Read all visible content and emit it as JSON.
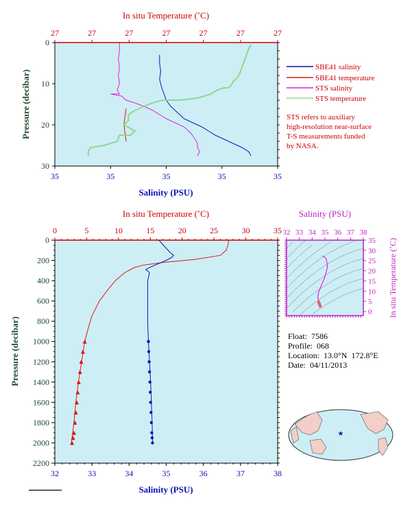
{
  "colors": {
    "panel_bg": "#cdeef5",
    "sbe_salinity": "#0a14b4",
    "sbe_temperature": "#e11414",
    "sts_salinity": "#e020e0",
    "sts_temperature": "#8fd88f",
    "temp_axis": "#cc0000",
    "sal_axis": "#0a14b4",
    "pressure_axis": "#1e4a2a",
    "ts_axis": "#c020c0"
  },
  "legend": {
    "items": [
      {
        "label": "SBE41 salinity",
        "color": "#0a14b4"
      },
      {
        "label": "SBE41 temperature",
        "color": "#e11414"
      },
      {
        "label": "STS salinity",
        "color": "#e020e0"
      },
      {
        "label": "STS temperature",
        "color": "#8fd88f"
      }
    ],
    "note_lines": [
      "STS refers to auxiliary",
      "high-resolution near-surface",
      "T-S measurements funded",
      "by NASA."
    ]
  },
  "float_info": {
    "float_label": "Float:",
    "float_value": "7586",
    "profile_label": "Profile:",
    "profile_value": "068",
    "location_label": "Location:",
    "location_value": "13.0°N  172.8°E",
    "date_label": "Date:",
    "date_value": "04/11/2013"
  },
  "chart_data": [
    {
      "id": "near-surface",
      "type": "line",
      "top_axis_title": "In situ Temperature (˚C)",
      "top_ticks": [
        "27",
        "27",
        "27",
        "27",
        "27",
        "27",
        "27"
      ],
      "bottom_axis_title": "Salinity (PSU)",
      "bottom_ticks": [
        "35",
        "35",
        "35",
        "35",
        "35"
      ],
      "left_axis_title": "Pressure (decibar)",
      "left_ticks": [
        0,
        10,
        20,
        30
      ],
      "ylim": [
        0,
        30
      ],
      "series": [
        {
          "name": "SBE41 salinity",
          "color": "#0a14b4",
          "x_frac": [
            0.47,
            0.47,
            0.475,
            0.47,
            0.48,
            0.49,
            0.5,
            0.52,
            0.55,
            0.58,
            0.62,
            0.66,
            0.69,
            0.72,
            0.76,
            0.8,
            0.84,
            0.87,
            0.88
          ],
          "y": [
            3,
            5,
            7,
            9,
            11,
            12.5,
            14,
            15.5,
            17,
            18.5,
            19.5,
            20.5,
            21.5,
            22.5,
            23.5,
            24.5,
            25.5,
            26.5,
            27.5
          ]
        },
        {
          "name": "SBE41 temperature",
          "color": "#e11414",
          "x_frac": [
            0.32,
            0.31,
            0.32
          ],
          "y": [
            16,
            20,
            24
          ]
        },
        {
          "name": "STS salinity",
          "color": "#e020e0",
          "x_frac": [
            0.29,
            0.29,
            0.285,
            0.29,
            0.285,
            0.29,
            0.28,
            0.29,
            0.25,
            0.3,
            0.32,
            0.35,
            0.4,
            0.44,
            0.47,
            0.5,
            0.54,
            0.58,
            0.61,
            0.63,
            0.64,
            0.64,
            0.65,
            0.64
          ],
          "y": [
            0,
            2,
            4,
            6,
            8,
            10,
            11.5,
            12.5,
            12.5,
            13,
            14,
            14.5,
            15.5,
            16.5,
            17.5,
            18.5,
            19.5,
            20.5,
            22,
            23.5,
            24.5,
            25.5,
            26.5,
            27.5
          ]
        },
        {
          "name": "STS temperature",
          "color": "#8fd88f",
          "x_frac": [
            0.88,
            0.87,
            0.86,
            0.85,
            0.84,
            0.83,
            0.82,
            0.8,
            0.79,
            0.78,
            0.76,
            0.73,
            0.7,
            0.67,
            0.64,
            0.56,
            0.48,
            0.42,
            0.36,
            0.33,
            0.33,
            0.31,
            0.36,
            0.34,
            0.29,
            0.28,
            0.22,
            0.16,
            0.15,
            0.15
          ],
          "y": [
            0.5,
            1.5,
            3,
            4.5,
            6,
            7.5,
            8.5,
            9.5,
            10.5,
            11,
            11,
            11.5,
            12.5,
            13,
            13.5,
            14,
            14,
            15,
            16.5,
            17.5,
            19,
            20,
            21.5,
            22.5,
            22.5,
            24,
            25,
            25.5,
            26.5,
            27.5
          ]
        }
      ]
    },
    {
      "id": "full-profile",
      "type": "line",
      "top_axis_title": "In situ Temperature (˚C)",
      "top_ticks": [
        0,
        5,
        10,
        15,
        20,
        25,
        30,
        35
      ],
      "xlim_temp": [
        0,
        35
      ],
      "bottom_axis_title": "Salinity (PSU)",
      "bottom_ticks": [
        32,
        33,
        34,
        35,
        36,
        37,
        38
      ],
      "xlim_sal": [
        32,
        38
      ],
      "left_axis_title": "Pressure (decibar)",
      "left_ticks": [
        0,
        200,
        400,
        600,
        800,
        1000,
        1200,
        1400,
        1600,
        1800,
        2000,
        2200
      ],
      "ylim": [
        0,
        2200
      ],
      "series": [
        {
          "name": "SBE41 salinity",
          "color": "#0a14b4",
          "x": [
            34.8,
            34.9,
            35.0,
            35.1,
            35.2,
            35.15,
            35.0,
            34.8,
            34.55,
            34.45,
            34.55,
            34.5,
            34.5,
            34.5,
            34.52,
            34.55,
            34.58,
            34.6,
            34.62,
            34.63
          ],
          "y": [
            0,
            40,
            80,
            120,
            150,
            170,
            200,
            230,
            270,
            290,
            320,
            400,
            600,
            800,
            1000,
            1200,
            1400,
            1600,
            1800,
            2000
          ]
        },
        {
          "name": "SBE41 temperature",
          "color": "#e11414",
          "x": [
            27.3,
            27.2,
            26.9,
            26,
            22,
            17,
            14,
            12.5,
            11,
            9.5,
            8.2,
            7,
            5.8,
            5.1,
            4.7,
            4.2,
            3.7,
            3.3,
            3.0,
            2.6
          ],
          "y": [
            0,
            50,
            100,
            150,
            190,
            220,
            245,
            270,
            320,
            400,
            500,
            600,
            750,
            900,
            1000,
            1200,
            1400,
            1600,
            1800,
            2000
          ]
        },
        {
          "name": "SBE41 salinity samples",
          "color": "#0a14b4",
          "x": [
            34.52,
            34.53,
            34.54,
            34.55,
            34.56,
            34.57,
            34.58,
            34.59,
            34.6,
            34.61,
            34.62,
            34.63
          ],
          "y": [
            1000,
            1100,
            1200,
            1300,
            1400,
            1500,
            1600,
            1700,
            1800,
            1900,
            1950,
            2000
          ]
        },
        {
          "name": "SBE41 temperature samples",
          "color": "#e11414",
          "x": [
            4.7,
            4.4,
            4.15,
            3.95,
            3.75,
            3.6,
            3.45,
            3.3,
            3.15,
            3.0,
            2.85,
            2.7
          ],
          "y": [
            1000,
            1100,
            1200,
            1300,
            1400,
            1500,
            1600,
            1700,
            1800,
            1900,
            1950,
            2000
          ]
        }
      ]
    },
    {
      "id": "ts-diagram",
      "type": "line",
      "top_axis_title": "Salinity (PSU)",
      "top_ticks": [
        32,
        33,
        34,
        35,
        36,
        37,
        38
      ],
      "xlim": [
        32,
        38
      ],
      "right_axis_title": "In situ Temperature (˚C)",
      "right_ticks": [
        0,
        5,
        10,
        15,
        20,
        25,
        30,
        35
      ],
      "ylim": [
        -2,
        35
      ],
      "series": [
        {
          "name": "T-S curve",
          "color": "#e020e0",
          "x": [
            34.8,
            34.9,
            35.1,
            35.2,
            35.0,
            34.7,
            34.5,
            34.45,
            34.5,
            34.55,
            34.6
          ],
          "y": [
            27.3,
            27,
            26,
            22,
            17,
            12.5,
            9.5,
            7,
            5.5,
            4.5,
            3.5
          ]
        },
        {
          "name": "T-S deep samples",
          "color": "#f06060",
          "x": [
            34.52,
            34.54,
            34.56,
            34.58,
            34.6,
            34.62,
            34.63
          ],
          "y": [
            4.7,
            4.2,
            3.8,
            3.45,
            3.15,
            2.85,
            2.6
          ]
        }
      ]
    }
  ]
}
